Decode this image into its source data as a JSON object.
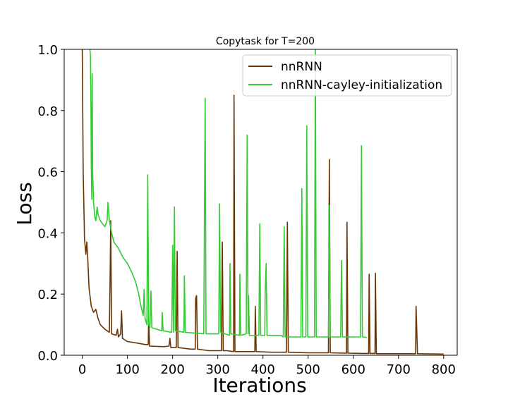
{
  "chart_data": {
    "type": "line",
    "title": "Copytask for T=200",
    "xlabel": "Iterations",
    "ylabel": "Loss",
    "xlim": [
      -40,
      830
    ],
    "ylim": [
      0,
      1.0
    ],
    "xticks": [
      0,
      100,
      200,
      300,
      400,
      500,
      600,
      700,
      800
    ],
    "yticks": [
      0.0,
      0.2,
      0.4,
      0.6,
      0.8,
      1.0
    ],
    "xtick_labels": [
      "0",
      "100",
      "200",
      "300",
      "400",
      "500",
      "600",
      "700",
      "800"
    ],
    "ytick_labels": [
      "0.0",
      "0.2",
      "0.4",
      "0.6",
      "0.8",
      "1.0"
    ],
    "legend_position": "upper right",
    "series": [
      {
        "name": "nnRNN",
        "color": "#6b3300",
        "points": [
          [
            0,
            1.0
          ],
          [
            2,
            0.6
          ],
          [
            5,
            0.38
          ],
          [
            8,
            0.33
          ],
          [
            10,
            0.37
          ],
          [
            12,
            0.32
          ],
          [
            15,
            0.22
          ],
          [
            20,
            0.16
          ],
          [
            25,
            0.14
          ],
          [
            30,
            0.15
          ],
          [
            35,
            0.12
          ],
          [
            40,
            0.1
          ],
          [
            50,
            0.085
          ],
          [
            60,
            0.075
          ],
          [
            62,
            0.3
          ],
          [
            63,
            0.44
          ],
          [
            65,
            0.07
          ],
          [
            75,
            0.065
          ],
          [
            78,
            0.085
          ],
          [
            80,
            0.06
          ],
          [
            85,
            0.07
          ],
          [
            87,
            0.145
          ],
          [
            89,
            0.055
          ],
          [
            100,
            0.045
          ],
          [
            120,
            0.04
          ],
          [
            140,
            0.035
          ],
          [
            146,
            0.035
          ],
          [
            147,
            0.115
          ],
          [
            149,
            0.03
          ],
          [
            180,
            0.028
          ],
          [
            192,
            0.03
          ],
          [
            194,
            0.055
          ],
          [
            196,
            0.025
          ],
          [
            208,
            0.025
          ],
          [
            210,
            0.34
          ],
          [
            212,
            0.025
          ],
          [
            240,
            0.02
          ],
          [
            250,
            0.02
          ],
          [
            251,
            0.185
          ],
          [
            252,
            0.19
          ],
          [
            253,
            0.195
          ],
          [
            255,
            0.02
          ],
          [
            280,
            0.015
          ],
          [
            300,
            0.015
          ],
          [
            308,
            0.015
          ],
          [
            310,
            0.37
          ],
          [
            312,
            0.015
          ],
          [
            320,
            0.015
          ],
          [
            335,
            0.012
          ],
          [
            336,
            0.85
          ],
          [
            338,
            0.012
          ],
          [
            360,
            0.012
          ],
          [
            382,
            0.012
          ],
          [
            383,
            0.16
          ],
          [
            385,
            0.012
          ],
          [
            420,
            0.01
          ],
          [
            452,
            0.01
          ],
          [
            454,
            0.435
          ],
          [
            456,
            0.01
          ],
          [
            500,
            0.008
          ],
          [
            545,
            0.008
          ],
          [
            547,
            0.64
          ],
          [
            549,
            0.008
          ],
          [
            580,
            0.007
          ],
          [
            585,
            0.007
          ],
          [
            586,
            0.435
          ],
          [
            588,
            0.007
          ],
          [
            620,
            0.006
          ],
          [
            634,
            0.006
          ],
          [
            635,
            0.265
          ],
          [
            637,
            0.006
          ],
          [
            648,
            0.006
          ],
          [
            649,
            0.268
          ],
          [
            651,
            0.005
          ],
          [
            700,
            0.005
          ],
          [
            738,
            0.005
          ],
          [
            739,
            0.16
          ],
          [
            742,
            0.005
          ],
          [
            800,
            0.004
          ]
        ]
      },
      {
        "name": "nnRNN-cayley-initialization",
        "color": "#33cc33",
        "points": [
          [
            17,
            1.0
          ],
          [
            18,
            0.98
          ],
          [
            19,
            0.85
          ],
          [
            20,
            0.62
          ],
          [
            21,
            0.51
          ],
          [
            22,
            0.92
          ],
          [
            23,
            0.6
          ],
          [
            25,
            0.5
          ],
          [
            28,
            0.45
          ],
          [
            30,
            0.44
          ],
          [
            33,
            0.485
          ],
          [
            35,
            0.46
          ],
          [
            40,
            0.44
          ],
          [
            45,
            0.43
          ],
          [
            50,
            0.42
          ],
          [
            55,
            0.44
          ],
          [
            57,
            0.5
          ],
          [
            60,
            0.44
          ],
          [
            65,
            0.4
          ],
          [
            70,
            0.37
          ],
          [
            80,
            0.35
          ],
          [
            90,
            0.32
          ],
          [
            100,
            0.3
          ],
          [
            110,
            0.27
          ],
          [
            118,
            0.24
          ],
          [
            125,
            0.2
          ],
          [
            130,
            0.16
          ],
          [
            135,
            0.13
          ],
          [
            137,
            0.215
          ],
          [
            139,
            0.12
          ],
          [
            143,
            0.1
          ],
          [
            145,
            0.59
          ],
          [
            147,
            0.1
          ],
          [
            150,
            0.09
          ],
          [
            152,
            0.21
          ],
          [
            154,
            0.09
          ],
          [
            165,
            0.085
          ],
          [
            176,
            0.08
          ],
          [
            177,
            0.14
          ],
          [
            179,
            0.08
          ],
          [
            198,
            0.075
          ],
          [
            200,
            0.36
          ],
          [
            202,
            0.075
          ],
          [
            204,
            0.485
          ],
          [
            206,
            0.08
          ],
          [
            225,
            0.075
          ],
          [
            226,
            0.26
          ],
          [
            228,
            0.075
          ],
          [
            269,
            0.07
          ],
          [
            271,
            0.6
          ],
          [
            272,
            0.84
          ],
          [
            274,
            0.07
          ],
          [
            302,
            0.07
          ],
          [
            304,
            0.495
          ],
          [
            306,
            0.075
          ],
          [
            326,
            0.065
          ],
          [
            327,
            0.3
          ],
          [
            329,
            0.07
          ],
          [
            348,
            0.065
          ],
          [
            349,
            0.265
          ],
          [
            351,
            0.065
          ],
          [
            363,
            0.07
          ],
          [
            365,
            0.72
          ],
          [
            367,
            0.07
          ],
          [
            368,
            0.195
          ],
          [
            370,
            0.065
          ],
          [
            391,
            0.065
          ],
          [
            393,
            0.43
          ],
          [
            395,
            0.065
          ],
          [
            404,
            0.065
          ],
          [
            405,
            0.21
          ],
          [
            407,
            0.3
          ],
          [
            409,
            0.065
          ],
          [
            440,
            0.065
          ],
          [
            445,
            0.06
          ],
          [
            447,
            0.42
          ],
          [
            449,
            0.06
          ],
          [
            484,
            0.06
          ],
          [
            486,
            0.545
          ],
          [
            488,
            0.06
          ],
          [
            495,
            0.06
          ],
          [
            497,
            0.75
          ],
          [
            499,
            0.06
          ],
          [
            514,
            0.06
          ],
          [
            516,
            1.0
          ],
          [
            518,
            0.06
          ],
          [
            545,
            0.06
          ],
          [
            547,
            0.49
          ],
          [
            549,
            0.06
          ],
          [
            572,
            0.06
          ],
          [
            574,
            0.31
          ],
          [
            576,
            0.06
          ],
          [
            616,
            0.06
          ],
          [
            618,
            0.685
          ],
          [
            620,
            0.06
          ],
          [
            630,
            0.058
          ]
        ]
      }
    ]
  }
}
